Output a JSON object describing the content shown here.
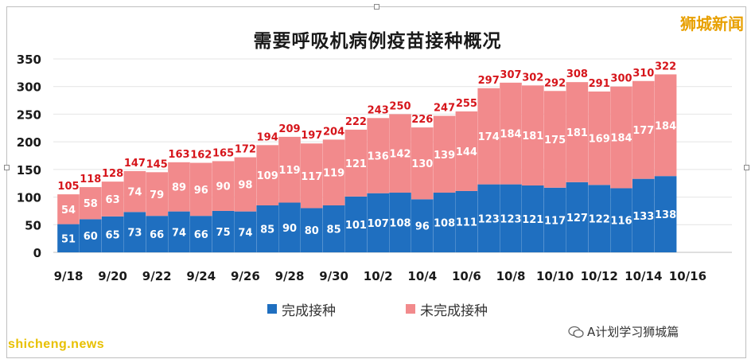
{
  "watermark": "狮城新闻",
  "credit_text": "A计划学习狮城篇",
  "footer_text": "shicheng.news",
  "legend": [
    {
      "label": "完成接种",
      "color": "#1f6fc0"
    },
    {
      "label": "未完成接种",
      "color": "#f28a8c"
    }
  ],
  "chart_data": {
    "type": "bar",
    "stacked": true,
    "title": "需要呼吸机病例疫苗接种概况",
    "categories": [
      "9/18",
      "9/19",
      "9/20",
      "9/21",
      "9/22",
      "9/23",
      "9/24",
      "9/25",
      "9/26",
      "9/27",
      "9/28",
      "9/29",
      "9/30",
      "10/1",
      "10/2",
      "10/3",
      "10/4",
      "10/5",
      "10/6",
      "10/7",
      "10/8",
      "10/9",
      "10/10",
      "10/11",
      "10/12",
      "10/13",
      "10/14",
      "10/15"
    ],
    "x_tick_labels": [
      "9/18",
      "9/20",
      "9/22",
      "9/24",
      "9/26",
      "9/28",
      "9/30",
      "10/2",
      "10/4",
      "10/6",
      "10/8",
      "10/10",
      "10/12",
      "10/14",
      "10/16"
    ],
    "series": [
      {
        "name": "完成接种",
        "color": "#1f6fc0",
        "values": [
          51,
          60,
          65,
          73,
          66,
          74,
          66,
          75,
          74,
          85,
          90,
          80,
          85,
          101,
          107,
          108,
          96,
          108,
          111,
          123,
          123,
          121,
          117,
          127,
          122,
          116,
          133,
          138
        ]
      },
      {
        "name": "未完成接种",
        "color": "#f28a8c",
        "values": [
          54,
          58,
          63,
          74,
          79,
          89,
          96,
          90,
          98,
          109,
          119,
          117,
          119,
          121,
          136,
          142,
          130,
          139,
          144,
          174,
          184,
          181,
          175,
          181,
          169,
          184,
          177,
          184
        ]
      }
    ],
    "totals": [
      105,
      118,
      128,
      147,
      145,
      163,
      162,
      165,
      172,
      194,
      209,
      197,
      204,
      222,
      243,
      250,
      226,
      247,
      255,
      297,
      307,
      302,
      292,
      308,
      291,
      300,
      310,
      322
    ],
    "ylim": [
      0,
      350
    ],
    "yticks": [
      0,
      50,
      100,
      150,
      200,
      250,
      300,
      350
    ],
    "grid": true,
    "legend_position": "bottom"
  }
}
